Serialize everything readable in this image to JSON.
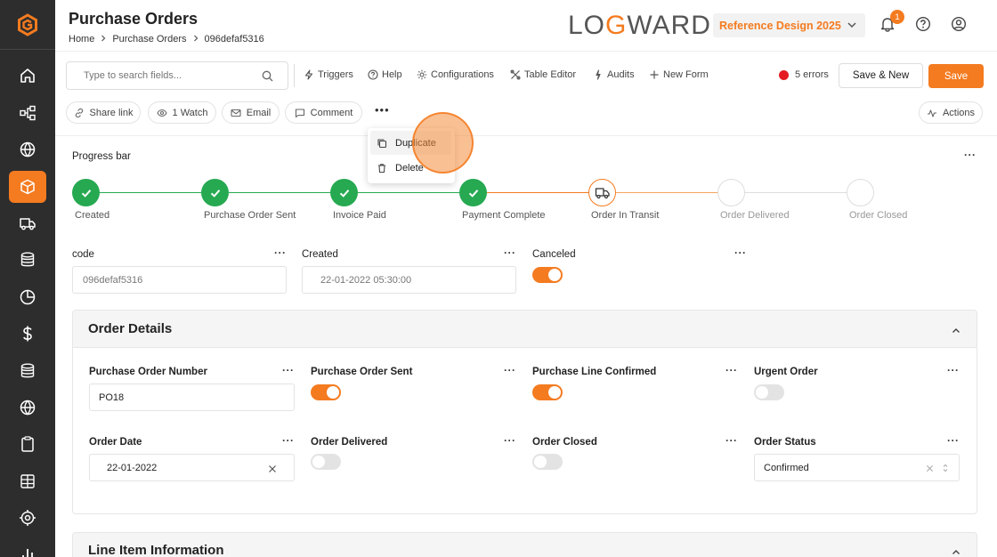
{
  "header": {
    "title": "Purchase Orders",
    "breadcrumb": [
      "Home",
      "Purchase Orders",
      "096defaf5316"
    ],
    "brand_pre": "LO",
    "brand_o": "G",
    "brand_post": "WARD",
    "reference_select": "Reference Design 2025",
    "notifications_count": "1"
  },
  "toolbar": {
    "search_placeholder": "Type to search fields...",
    "triggers": "Triggers",
    "help": "Help",
    "configurations": "Configurations",
    "table_editor": "Table Editor",
    "audits": "Audits",
    "new_form": "New Form",
    "errors": "5 errors",
    "save_new": "Save & New",
    "save": "Save",
    "share_link": "Share link",
    "watch": "1 Watch",
    "email": "Email",
    "comment": "Comment",
    "more": "•••",
    "actions": "Actions"
  },
  "dropdown": {
    "duplicate": "Duplicate",
    "delete": "Delete"
  },
  "progress": {
    "label": "Progress bar",
    "steps": [
      {
        "label": "Created",
        "state": "done"
      },
      {
        "label": "Purchase Order Sent",
        "state": "done"
      },
      {
        "label": "Invoice Paid",
        "state": "done"
      },
      {
        "label": "Payment Complete",
        "state": "done"
      },
      {
        "label": "Order In Transit",
        "state": "current"
      },
      {
        "label": "Order Delivered",
        "state": "todo"
      },
      {
        "label": "Order Closed",
        "state": "todo"
      }
    ]
  },
  "fields": {
    "code_label": "code",
    "code_value": "096defaf5316",
    "created_label": "Created",
    "created_value": "22-01-2022 05:30:00",
    "canceled_label": "Canceled",
    "canceled_on": true
  },
  "order_details": {
    "title": "Order Details",
    "po_number_label": "Purchase Order Number",
    "po_number_value": "PO18",
    "po_sent_label": "Purchase Order Sent",
    "po_sent_on": true,
    "line_confirmed_label": "Purchase Line Confirmed",
    "line_confirmed_on": true,
    "urgent_label": "Urgent Order",
    "urgent_on": false,
    "order_date_label": "Order Date",
    "order_date_value": "22-01-2022",
    "delivered_label": "Order Delivered",
    "delivered_on": false,
    "closed_label": "Order Closed",
    "closed_on": false,
    "status_label": "Order Status",
    "status_value": "Confirmed"
  },
  "line_items": {
    "title": "Line Item Information"
  },
  "colors": {
    "accent": "#f47b20",
    "success": "#26a951",
    "error": "#e51b23",
    "sidebar": "#2d2d2d"
  }
}
